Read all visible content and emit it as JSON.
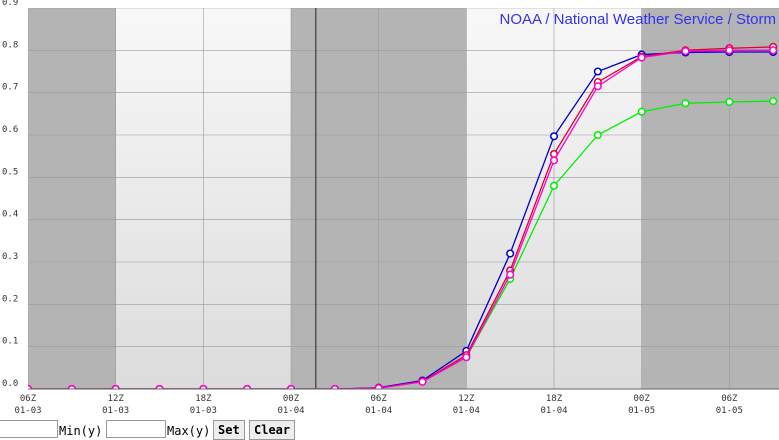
{
  "chart_data": {
    "type": "line",
    "title": "NOAA / National Weather Service / Storm",
    "x": [
      0,
      3,
      6,
      9,
      12,
      15,
      18,
      21,
      24,
      27,
      30,
      33,
      36,
      39,
      42,
      45,
      48,
      51
    ],
    "xlim": [
      0,
      51.4
    ],
    "xticks": [
      {
        "value": 0,
        "label": "06Z",
        "sublabel": "01-03"
      },
      {
        "value": 6,
        "label": "12Z",
        "sublabel": "01-03"
      },
      {
        "value": 12,
        "label": "18Z",
        "sublabel": "01-03"
      },
      {
        "value": 18,
        "label": "00Z",
        "sublabel": "01-04"
      },
      {
        "value": 24,
        "label": "06Z",
        "sublabel": "01-04"
      },
      {
        "value": 30,
        "label": "12Z",
        "sublabel": "01-04"
      },
      {
        "value": 36,
        "label": "18Z",
        "sublabel": "01-04"
      },
      {
        "value": 42,
        "label": "00Z",
        "sublabel": "01-05"
      },
      {
        "value": 48,
        "label": "06Z",
        "sublabel": "01-05"
      }
    ],
    "ylim": [
      0,
      0.9
    ],
    "yticks": [
      {
        "value": 0,
        "label": "0.0"
      },
      0.1,
      0.2,
      0.3,
      0.4,
      0.5,
      0.6,
      0.7,
      0.8,
      0.9
    ],
    "grid": true,
    "shaded": [
      [
        0,
        6
      ],
      [
        18,
        30
      ],
      [
        42,
        51.4
      ]
    ],
    "now_line": 19.7,
    "series": [
      {
        "color": "#00ee00",
        "values": [
          0,
          0,
          0,
          0,
          0,
          0,
          0,
          0,
          0.002,
          0.018,
          0.075,
          0.26,
          0.48,
          0.6,
          0.655,
          0.675,
          0.678,
          0.68
        ]
      },
      {
        "color": "#0000cc",
        "values": [
          0,
          0,
          0,
          0,
          0,
          0,
          0,
          0,
          0.003,
          0.02,
          0.09,
          0.32,
          0.597,
          0.75,
          0.79,
          0.795,
          0.796,
          0.796
        ]
      },
      {
        "color": "#dd0033",
        "values": [
          0,
          0,
          0,
          0,
          0,
          0,
          0,
          0,
          0.002,
          0.018,
          0.08,
          0.28,
          0.555,
          0.725,
          0.785,
          0.8,
          0.805,
          0.808
        ]
      },
      {
        "color": "#ff00cc",
        "values": [
          0,
          0,
          0,
          0,
          0,
          0,
          0,
          0,
          0.002,
          0.017,
          0.075,
          0.27,
          0.54,
          0.715,
          0.783,
          0.798,
          0.8,
          0.8
        ]
      }
    ]
  },
  "controls": {
    "min_label": "Min(y)",
    "max_label": "Max(y)",
    "set_button": "Set",
    "clear_button": "Clear"
  }
}
